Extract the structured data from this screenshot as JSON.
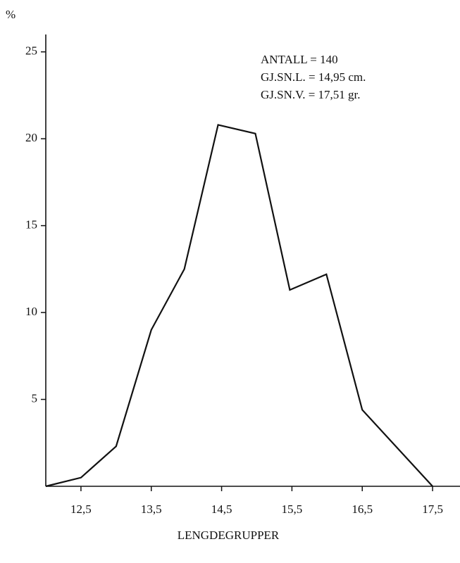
{
  "chart_data": {
    "type": "line",
    "y_label": "%",
    "x_label": "LENGDEGRUPPER",
    "annotations": [
      "ANTALL = 140",
      "GJ.SN.L. = 14,95 cm.",
      "GJ.SN.V. = 17,51 gr."
    ],
    "x": [
      12.0,
      12.5,
      13.0,
      13.5,
      13.97,
      14.45,
      14.98,
      15.47,
      15.99,
      16.5,
      17.5
    ],
    "series": [
      {
        "color": "#111111",
        "values": [
          0,
          0.5,
          2.3,
          9.0,
          12.5,
          20.8,
          20.3,
          11.3,
          12.2,
          4.4,
          0
        ]
      }
    ],
    "xlim": [
      12,
      17.9
    ],
    "ylim": [
      0,
      26
    ],
    "xticks": [
      {
        "value": 12.5,
        "label": "12,5"
      },
      {
        "value": 13.5,
        "label": "13,5"
      },
      {
        "value": 14.5,
        "label": "14,5"
      },
      {
        "value": 15.5,
        "label": "15,5"
      },
      {
        "value": 16.5,
        "label": "16,5"
      },
      {
        "value": 17.5,
        "label": "17,5"
      }
    ],
    "yticks": [
      5,
      10,
      15,
      20,
      25
    ],
    "grid": false
  }
}
